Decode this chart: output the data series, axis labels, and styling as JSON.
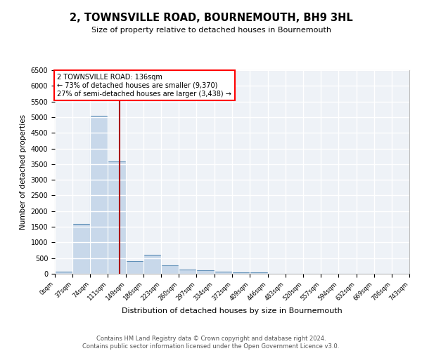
{
  "title": "2, TOWNSVILLE ROAD, BOURNEMOUTH, BH9 3HL",
  "subtitle": "Size of property relative to detached houses in Bournemouth",
  "xlabel": "Distribution of detached houses by size in Bournemouth",
  "ylabel": "Number of detached properties",
  "bar_color": "#c8d8ea",
  "bar_edge_color": "#6090b8",
  "background_color": "#eef2f7",
  "grid_color": "#ffffff",
  "property_size": 136,
  "property_line_color": "#aa0000",
  "annotation_text": "2 TOWNSVILLE ROAD: 136sqm\n← 73% of detached houses are smaller (9,370)\n27% of semi-detached houses are larger (3,438) →",
  "bin_edges": [
    0,
    37,
    74,
    111,
    149,
    186,
    223,
    260,
    297,
    334,
    372,
    409,
    446,
    483,
    520,
    557,
    594,
    632,
    669,
    706,
    743
  ],
  "bin_counts": [
    70,
    1600,
    5050,
    3580,
    400,
    600,
    270,
    130,
    110,
    70,
    40,
    40,
    10,
    5,
    5,
    5,
    5,
    5,
    5,
    5
  ],
  "ylim": [
    0,
    6500
  ],
  "yticks": [
    0,
    500,
    1000,
    1500,
    2000,
    2500,
    3000,
    3500,
    4000,
    4500,
    5000,
    5500,
    6000,
    6500
  ],
  "footer_text": "Contains HM Land Registry data © Crown copyright and database right 2024.\nContains public sector information licensed under the Open Government Licence v3.0.",
  "fig_bg_color": "#ffffff"
}
